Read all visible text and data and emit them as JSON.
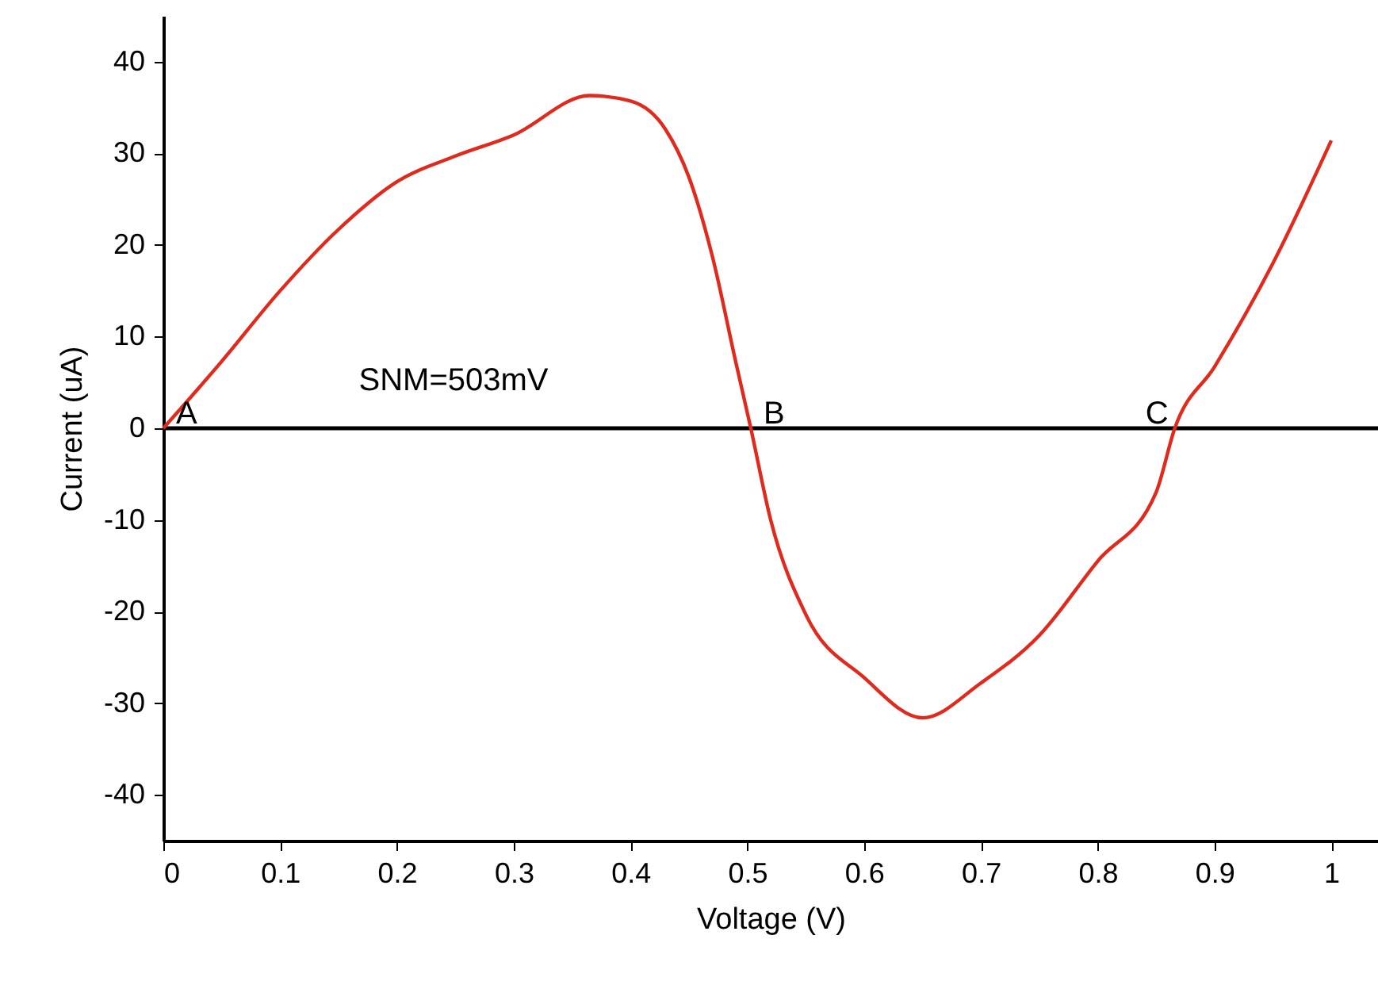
{
  "chart_data": {
    "type": "line",
    "xlabel": "Voltage (V)",
    "ylabel": "Current (uA)",
    "x": [
      0,
      0.05,
      0.1,
      0.15,
      0.2,
      0.25,
      0.3,
      0.365,
      0.4,
      0.43,
      0.45,
      0.47,
      0.49,
      0.503,
      0.52,
      0.55,
      0.6,
      0.65,
      0.7,
      0.75,
      0.8,
      0.85,
      0.866,
      0.9,
      0.95,
      1.0
    ],
    "series": [
      {
        "color": "#e02a1e",
        "values": [
          0,
          7.3,
          15,
          21.7,
          26.9,
          29.7,
          32,
          36.3,
          35.7,
          32.6,
          27.4,
          18.8,
          7.3,
          0,
          -10,
          -20.3,
          -27.2,
          -31.6,
          -27.8,
          -22.6,
          -14.5,
          -7,
          0,
          6.7,
          18,
          31.4
        ]
      }
    ],
    "xlim": [
      0,
      1.04
    ],
    "xticks": [
      0,
      0.1,
      0.2,
      0.3,
      0.4,
      0.5,
      0.6,
      0.7,
      0.8,
      0.9,
      1
    ],
    "ylim": [
      -45,
      45
    ],
    "yticks": [
      -40,
      -30,
      -20,
      -10,
      0,
      10,
      20,
      30,
      40
    ],
    "ref_lines": [
      {
        "axis": "y",
        "value": 0,
        "color": "#000000"
      }
    ],
    "annotations": [
      "SNM=503mV",
      {
        "text": "A",
        "x": 0,
        "y": 0
      },
      {
        "text": "B",
        "x": 0.503,
        "y": 0
      },
      {
        "text": "C",
        "x": 0.866,
        "y": 0
      }
    ],
    "grid": false,
    "marker": "none",
    "line_style": "solid"
  }
}
